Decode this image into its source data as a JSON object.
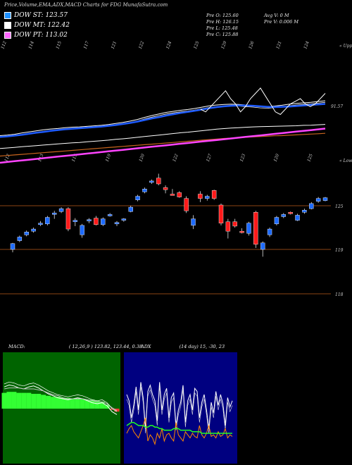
{
  "title": "Price,Volume,EMA,ADX,MACD Charts for FDG MunafaSutra.com",
  "legend": [
    {
      "label": "DOW ST: 123.57",
      "color": "#1e90ff"
    },
    {
      "label": "DOW MT: 122.42",
      "color": "#ffffff"
    },
    {
      "label": "DOW PT: 113.02",
      "color": "#ff66ff"
    }
  ],
  "ohlc": {
    "open_label": "Pre  O: 125.60",
    "high_label": "Pre  H: 126.15",
    "low_label": "Pre  L: 125.48",
    "close_label": "Pre  C: 125.88"
  },
  "volume": {
    "avg_label": "Avg V: 0  M",
    "pre_label": "Pre  V: 0.006  M"
  },
  "ema_panel": {
    "top_labels": [
      "112",
      "114",
      "115",
      "117",
      "121",
      "122",
      "124",
      "125",
      "129",
      "126",
      "121",
      "124"
    ],
    "bottom_labels": [
      "112",
      "113",
      "115",
      "119",
      "120",
      "122",
      "127",
      "123",
      "120",
      "125"
    ],
    "upper_tag": "« Upper",
    "lower_tag": "« Lower",
    "value_label": "91.57"
  },
  "price_panel": {
    "levels": [
      "125",
      "119",
      "118"
    ]
  },
  "macd": {
    "label": "MACD:",
    "values": "( 12,26,9 ) 123.82,  123.44,  0.38"
  },
  "adx": {
    "label": "ADX",
    "values": "(14  day) 15,  -30,  23"
  },
  "colors": {
    "up": "#1e6bff",
    "down": "#ff1a1a",
    "ema_white": "#ffffff",
    "ema_blue": "#1e5bff",
    "ema_orange": "#c8641e",
    "ema_magenta": "#ff44ff",
    "macd_green": "#22cc22",
    "adx_orange": "#ff8800",
    "adx_green": "#22ff22"
  },
  "chart_data": {
    "type": "candlestick",
    "candles": [
      {
        "o": 119.0,
        "h": 119.9,
        "l": 118.6,
        "c": 119.8
      },
      {
        "o": 120.2,
        "h": 120.9,
        "l": 120.0,
        "c": 120.7
      },
      {
        "o": 121.0,
        "h": 121.6,
        "l": 120.8,
        "c": 121.4
      },
      {
        "o": 121.5,
        "h": 122.0,
        "l": 121.3,
        "c": 121.8
      },
      {
        "o": 122.4,
        "h": 122.9,
        "l": 122.2,
        "c": 122.6
      },
      {
        "o": 122.5,
        "h": 123.6,
        "l": 122.3,
        "c": 123.4
      },
      {
        "o": 123.8,
        "h": 124.3,
        "l": 123.2,
        "c": 124.0
      },
      {
        "o": 124.2,
        "h": 124.8,
        "l": 124.0,
        "c": 124.6
      },
      {
        "o": 124.6,
        "h": 124.8,
        "l": 121.5,
        "c": 121.8
      },
      {
        "o": 122.8,
        "h": 123.3,
        "l": 122.2,
        "c": 123.0
      },
      {
        "o": 121.0,
        "h": 122.5,
        "l": 120.6,
        "c": 122.3
      },
      {
        "o": 122.9,
        "h": 123.3,
        "l": 122.6,
        "c": 123.1
      },
      {
        "o": 123.3,
        "h": 123.6,
        "l": 122.3,
        "c": 122.4
      },
      {
        "o": 122.4,
        "h": 123.4,
        "l": 122.2,
        "c": 123.2
      },
      {
        "o": 123.6,
        "h": 124.0,
        "l": 123.5,
        "c": 123.8
      },
      {
        "o": 122.5,
        "h": 122.9,
        "l": 122.2,
        "c": 122.7
      },
      {
        "o": 123.0,
        "h": 123.3,
        "l": 122.8,
        "c": 123.2
      },
      {
        "o": 124.2,
        "h": 125.0,
        "l": 124.1,
        "c": 124.8
      },
      {
        "o": 125.8,
        "h": 126.5,
        "l": 125.6,
        "c": 126.3
      },
      {
        "o": 126.9,
        "h": 127.5,
        "l": 126.7,
        "c": 127.3
      },
      {
        "o": 128.2,
        "h": 128.6,
        "l": 128.0,
        "c": 128.4
      },
      {
        "o": 128.8,
        "h": 129.4,
        "l": 127.8,
        "c": 128.0
      },
      {
        "o": 127.5,
        "h": 127.8,
        "l": 126.7,
        "c": 127.2
      },
      {
        "o": 126.6,
        "h": 127.3,
        "l": 126.4,
        "c": 126.5
      },
      {
        "o": 126.8,
        "h": 127.0,
        "l": 126.1,
        "c": 126.2
      },
      {
        "o": 126.0,
        "h": 126.3,
        "l": 124.0,
        "c": 124.3
      },
      {
        "o": 122.3,
        "h": 123.7,
        "l": 121.8,
        "c": 123.2
      },
      {
        "o": 126.6,
        "h": 127.0,
        "l": 125.5,
        "c": 126.0
      },
      {
        "o": 126.0,
        "h": 126.5,
        "l": 125.7,
        "c": 126.3
      },
      {
        "o": 127.1,
        "h": 127.2,
        "l": 125.8,
        "c": 126.0
      },
      {
        "o": 125.1,
        "h": 125.3,
        "l": 122.3,
        "c": 122.6
      },
      {
        "o": 122.8,
        "h": 123.2,
        "l": 120.5,
        "c": 121.5
      },
      {
        "o": 122.8,
        "h": 123.2,
        "l": 122.0,
        "c": 122.2
      },
      {
        "o": 121.5,
        "h": 121.9,
        "l": 121.2,
        "c": 121.4
      },
      {
        "o": 121.2,
        "h": 122.8,
        "l": 120.9,
        "c": 122.6
      },
      {
        "o": 124.1,
        "h": 124.3,
        "l": 119.2,
        "c": 119.7
      },
      {
        "o": 119.0,
        "h": 120.1,
        "l": 118.0,
        "c": 119.9
      },
      {
        "o": 121.0,
        "h": 122.0,
        "l": 120.7,
        "c": 121.8
      },
      {
        "o": 122.5,
        "h": 123.6,
        "l": 122.3,
        "c": 123.4
      },
      {
        "o": 123.5,
        "h": 124.0,
        "l": 123.3,
        "c": 123.8
      },
      {
        "o": 124.1,
        "h": 124.2,
        "l": 123.8,
        "c": 123.9
      },
      {
        "o": 123.0,
        "h": 123.9,
        "l": 122.9,
        "c": 123.7
      },
      {
        "o": 124.1,
        "h": 124.6,
        "l": 123.9,
        "c": 124.4
      },
      {
        "o": 124.6,
        "h": 125.5,
        "l": 124.5,
        "c": 125.3
      },
      {
        "o": 125.6,
        "h": 126.2,
        "l": 125.4,
        "c": 126.0
      },
      {
        "o": 125.7,
        "h": 126.2,
        "l": 125.6,
        "c": 126.1
      }
    ],
    "price_lines": [
      125,
      119,
      118
    ],
    "ema_top_series": {
      "ema_white": [
        112,
        112.2,
        112.5,
        113,
        113.4,
        113.8,
        114.2,
        114.5,
        114.7,
        115,
        115.2,
        115.3,
        115.5,
        115.7,
        115.9,
        116.2,
        116.6,
        117,
        117.5,
        118.1,
        118.9,
        119.6,
        120.2,
        120.8,
        121.2,
        121.6,
        121.9,
        122.3,
        122.8,
        123.3,
        123.6,
        123.8,
        123.9,
        123.8,
        123.6,
        123.4,
        123.1,
        123.0,
        123.2,
        123.5,
        123.9,
        124.2,
        124.4,
        124.6,
        124.9,
        125.2
      ],
      "ema_blue": [
        111.5,
        111.7,
        112,
        112.3,
        112.7,
        113.1,
        113.4,
        113.8,
        114.1,
        114.4,
        114.6,
        114.8,
        115,
        115.2,
        115.4,
        115.7,
        116,
        116.4,
        116.8,
        117.3,
        117.9,
        118.5,
        119,
        119.6,
        120.1,
        120.6,
        121,
        121.4,
        121.9,
        122.4,
        122.8,
        123.1,
        123.3,
        123.4,
        123.4,
        123.3,
        123.1,
        122.9,
        122.8,
        122.9,
        123,
        123.2,
        123.4,
        123.6,
        123.8,
        124
      ]
    },
    "ema_bottom_series": {
      "ema_white": [
        107,
        107.3,
        107.6,
        107.9,
        108.2,
        108.5,
        108.8,
        109.1,
        109.4,
        109.7,
        110,
        110.2,
        110.5,
        110.8,
        111.1,
        111.4,
        111.8,
        112.1,
        112.5,
        112.9,
        113.3,
        113.7,
        114.1,
        114.5,
        114.9,
        115.3,
        115.6,
        116,
        116.4,
        116.8,
        117.2,
        117.5,
        117.8,
        118,
        118.2,
        118.4,
        118.5,
        118.6,
        118.7,
        118.8,
        118.9,
        119,
        119.2,
        119.3,
        119.5,
        119.7
      ],
      "ema_orange": [
        103,
        103.3,
        103.6,
        103.9,
        104.2,
        104.5,
        104.8,
        105.1,
        105.4,
        105.7,
        106,
        106.3,
        106.6,
        106.9,
        107.2,
        107.5,
        107.8,
        108.1,
        108.4,
        108.7,
        109,
        109.3,
        109.6,
        109.9,
        110.2,
        110.5,
        110.8,
        111.1,
        111.4,
        111.7,
        112,
        112.3,
        112.5,
        112.7,
        112.9,
        113.1,
        113.3,
        113.5,
        113.7,
        113.8,
        114,
        114.2,
        114.4,
        114.6,
        114.8,
        115
      ],
      "ema_magenta": [
        99.5,
        99.9,
        100.3,
        100.7,
        101.1,
        101.5,
        101.9,
        102.3,
        102.7,
        103.1,
        103.5,
        103.9,
        104.3,
        104.7,
        105.1,
        105.5,
        105.9,
        106.3,
        106.7,
        107.1,
        107.5,
        107.9,
        108.3,
        108.7,
        109.1,
        109.5,
        109.9,
        110.3,
        110.7,
        111.1,
        111.5,
        111.9,
        112.3,
        112.7,
        113.1,
        113.5,
        113.9,
        114.3,
        114.7,
        115.1,
        115.5,
        115.9,
        116.3,
        116.7,
        117.1,
        117.5
      ]
    },
    "macd_series": {
      "macd": [
        2.2,
        2.4,
        2.3,
        2.1,
        2.0,
        2.2,
        2.3,
        2.1,
        1.8,
        1.5,
        1.3,
        1.1,
        1.0,
        0.9,
        1.0,
        1.1,
        1.0,
        0.8,
        0.6,
        0.5,
        0.6,
        0.3,
        -0.3,
        -0.6
      ],
      "signal": [
        2.0,
        2.1,
        2.1,
        2.1,
        2.0,
        2.0,
        2.0,
        1.9,
        1.8,
        1.6,
        1.4,
        1.3,
        1.1,
        1.0,
        1.0,
        1.0,
        1.0,
        0.9,
        0.8,
        0.7,
        0.7,
        0.5,
        0.1,
        -0.2
      ],
      "hist": [
        1.6,
        1.7,
        1.7,
        1.6,
        1.6,
        1.6,
        1.5,
        1.5,
        1.4,
        1.3,
        1.2,
        1.2,
        1.1,
        1.1,
        1.0,
        1.0,
        1.0,
        0.9,
        0.9,
        0.8,
        0.7,
        0.4,
        -0.1,
        -0.3
      ]
    },
    "adx_series": {
      "di_plus": [
        40,
        36,
        25,
        33,
        45,
        30,
        48,
        38,
        18,
        42,
        46,
        40,
        36,
        23,
        48,
        30,
        40,
        44,
        25,
        38,
        41,
        20,
        30,
        35,
        46,
        22,
        36,
        40,
        30,
        44,
        42,
        25,
        35,
        40,
        30,
        18,
        35,
        28,
        42,
        33,
        40,
        34,
        20,
        38,
        32,
        36
      ],
      "di_minus": [
        15,
        18,
        20,
        16,
        14,
        12,
        16,
        20,
        25,
        10,
        14,
        12,
        8,
        15,
        12,
        18,
        10,
        14,
        15,
        12,
        10,
        22,
        14,
        12,
        10,
        16,
        14,
        12,
        15,
        13,
        12,
        20,
        14,
        12,
        15,
        20,
        13,
        14,
        12,
        16,
        13,
        14,
        18,
        12,
        14,
        13
      ],
      "adx": [
        20,
        21,
        22,
        22,
        21,
        20,
        20,
        20,
        19,
        19,
        20,
        20,
        19,
        19,
        18,
        18,
        17,
        17,
        17,
        17,
        18,
        18,
        18,
        17,
        17,
        17,
        17,
        17,
        16,
        16,
        16,
        16,
        15,
        15,
        15,
        15,
        15,
        15,
        15,
        15,
        15,
        15,
        15,
        15,
        15,
        15
      ]
    }
  }
}
